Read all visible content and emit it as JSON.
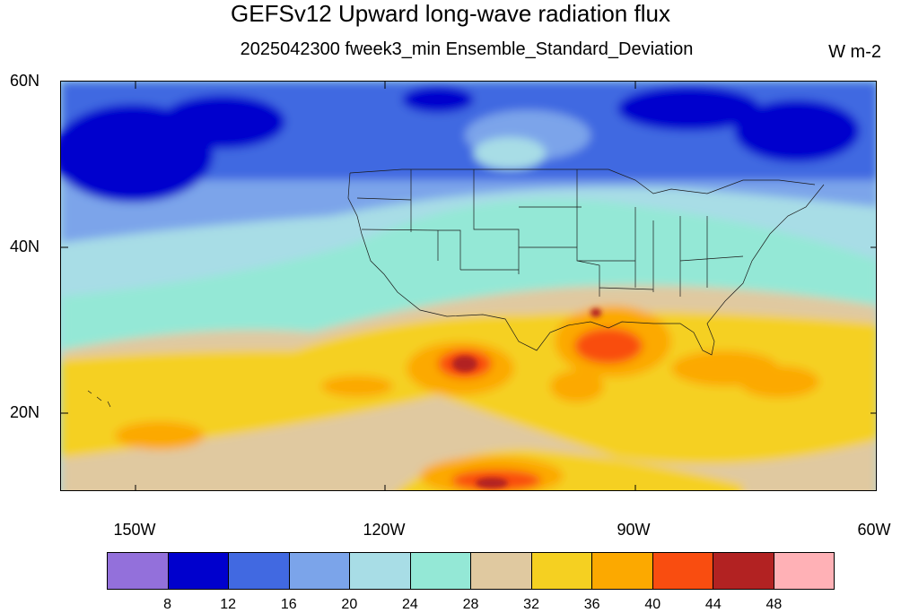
{
  "header": {
    "title": "GEFSv12 Upward long-wave radiation flux",
    "subtitle": "2025042300 fweek3_min Ensemble_Standard_Deviation",
    "units": "W m-2"
  },
  "map": {
    "projection": "cylindrical equidistant",
    "extent": {
      "lon_min": -160,
      "lon_max": -60,
      "lat_min": 10,
      "lat_max": 60
    },
    "lat_ticks": [
      {
        "value": 60,
        "label": "60N"
      },
      {
        "value": 40,
        "label": "40N"
      },
      {
        "value": 20,
        "label": "20N"
      }
    ],
    "lon_ticks": [
      {
        "value": -150,
        "label": "150W"
      },
      {
        "value": -120,
        "label": "120W"
      },
      {
        "value": -90,
        "label": "90W"
      },
      {
        "value": -60,
        "label": "60W"
      }
    ],
    "overlay": "US state boundaries and coastlines"
  },
  "colorbar": {
    "colors": [
      "#9370db",
      "#0000cd",
      "#4169e1",
      "#7ba4ea",
      "#a8dde6",
      "#94e8d6",
      "#e0c9a0",
      "#f5d021",
      "#fca900",
      "#f94d10",
      "#b22222",
      "#ffb1b6"
    ],
    "labels": [
      "8",
      "12",
      "16",
      "20",
      "24",
      "28",
      "32",
      "36",
      "40",
      "44",
      "48"
    ]
  }
}
